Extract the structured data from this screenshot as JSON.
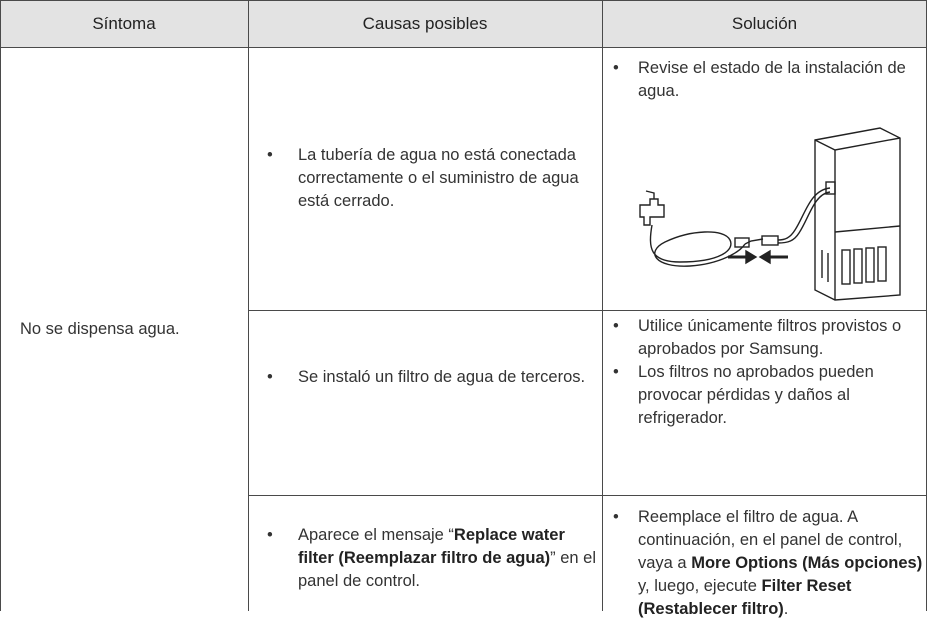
{
  "table": {
    "header": [
      "Síntoma",
      "Causas posibles",
      "Solución"
    ],
    "symptom": "No se dispensa agua.",
    "rows": [
      {
        "cause": [
          "La tubería de agua no está conectada correctamente o el suministro de agua está cerrado."
        ],
        "solution": [
          "Revise el estado de la instalación de agua."
        ]
      },
      {
        "cause": [
          "Se instaló un filtro de agua de terceros."
        ],
        "solution": [
          "Utilice únicamente filtros provistos o aprobados por Samsung.",
          "Los filtros no aprobados pueden provocar pérdidas y daños al refrigerador."
        ]
      },
      {
        "cause": [
          "Aparece el mensaje “",
          "Replace water filter (Reemplazar filtro de agua)",
          "” en el panel de control."
        ],
        "solution": [
          "Reemplace el filtro de agua. A continuación, en el panel de control, vaya a ",
          "More Options (Más opciones)",
          " y, luego, ejecute ",
          "Filter Reset (Restablecer filtro)",
          "."
        ]
      }
    ]
  }
}
